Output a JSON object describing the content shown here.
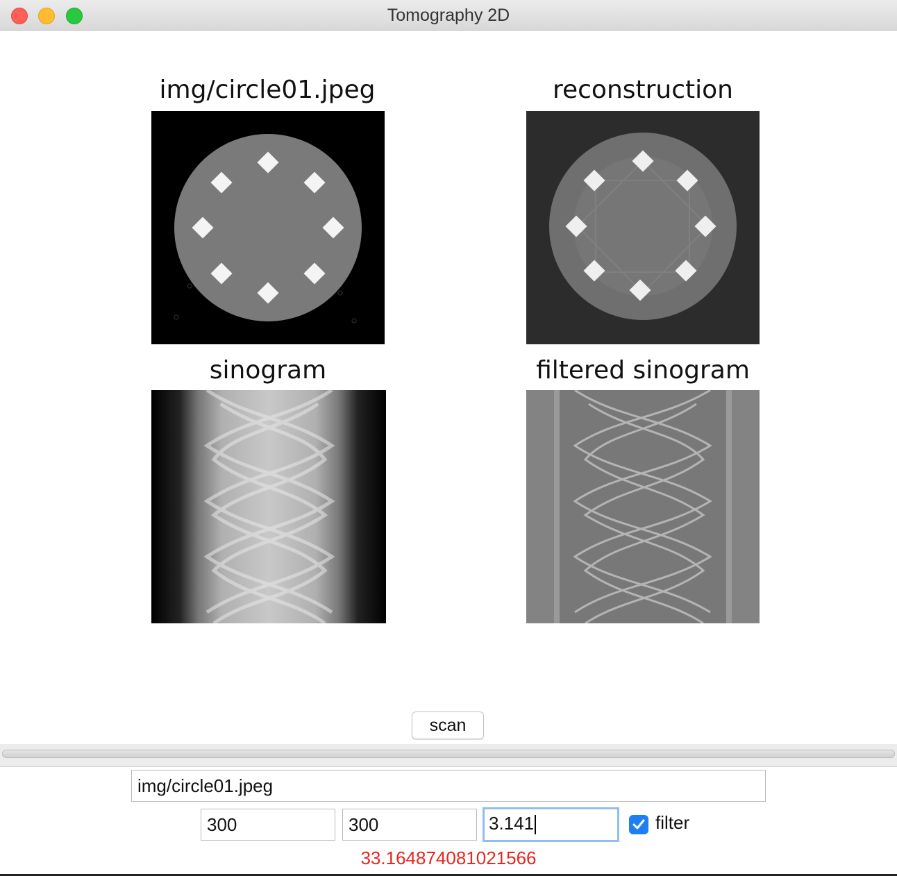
{
  "window": {
    "title": "Tomography 2D"
  },
  "figure": {
    "panels": [
      {
        "title": "img/circle01.jpeg"
      },
      {
        "title": "reconstruction"
      },
      {
        "title": "sinogram"
      },
      {
        "title": "filtered sinogram"
      }
    ]
  },
  "controls": {
    "scan_label": "scan",
    "progress_percent": 100,
    "file_path": "img/circle01.jpeg",
    "detectors": "300",
    "scans": "300",
    "range": "3.141",
    "filter_label": "filter",
    "filter_checked": true,
    "result": "33.164874081021566"
  },
  "colors": {
    "accent": "#1e7ff5",
    "result": "#e8251f"
  }
}
